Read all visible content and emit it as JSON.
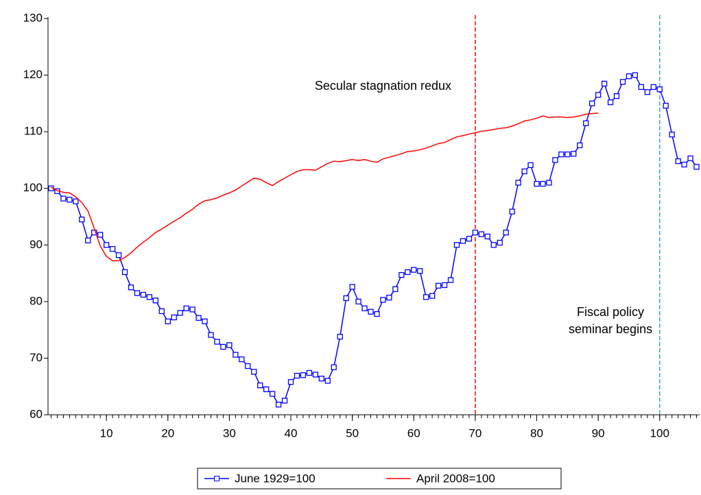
{
  "chart_data": {
    "type": "line",
    "x": [
      1,
      2,
      3,
      4,
      5,
      6,
      7,
      8,
      9,
      10,
      11,
      12,
      13,
      14,
      15,
      16,
      17,
      18,
      19,
      20,
      21,
      22,
      23,
      24,
      25,
      26,
      27,
      28,
      29,
      30,
      31,
      32,
      33,
      34,
      35,
      36,
      37,
      38,
      39,
      40,
      41,
      42,
      43,
      44,
      45,
      46,
      47,
      48,
      49,
      50,
      51,
      52,
      53,
      54,
      55,
      56,
      57,
      58,
      59,
      60,
      61,
      62,
      63,
      64,
      65,
      66,
      67,
      68,
      69,
      70,
      71,
      72,
      73,
      74,
      75,
      76,
      77,
      78,
      79,
      80,
      81,
      82,
      83,
      84,
      85,
      86,
      87,
      88,
      89,
      90,
      91,
      92,
      93,
      94,
      95,
      96,
      97,
      98,
      99,
      100,
      101,
      102,
      103,
      104,
      105,
      106
    ],
    "series": [
      {
        "name": "June 1929=100",
        "color": "#0000ff",
        "marker": "square",
        "values": [
          100,
          99.5,
          98.2,
          98,
          97.7,
          94.5,
          90.8,
          92.2,
          91.8,
          90,
          89.3,
          88.2,
          85.2,
          82.5,
          81.5,
          81.2,
          80.8,
          80.2,
          78.3,
          76.5,
          77.2,
          78,
          78.8,
          78.6,
          77.1,
          76.5,
          74.1,
          72.9,
          72,
          72.3,
          70.6,
          69.8,
          68.6,
          67.6,
          65.2,
          64.5,
          63.7,
          61.8,
          62.5,
          65.8,
          66.9,
          67,
          67.4,
          67.1,
          66.4,
          66,
          68.4,
          73.8,
          80.6,
          82.6,
          80,
          78.8,
          78.2,
          77.8,
          80.3,
          80.7,
          82.2,
          84.7,
          85.2,
          85.6,
          85.4,
          80.8,
          81,
          82.8,
          82.9,
          83.8,
          90,
          90.7,
          91.1,
          92.2,
          91.9,
          91.5,
          90,
          90.4,
          92.2,
          95.9,
          101,
          103,
          104.1,
          100.8,
          100.8,
          101,
          105,
          106,
          106,
          106.1,
          107.6,
          111.5,
          115,
          116.5,
          118.5,
          115.2,
          116.3,
          118.8,
          119.8,
          120,
          117.9,
          117,
          117.9,
          117.5,
          114.6,
          109.5,
          104.8,
          104.2,
          105.3,
          103.8
        ]
      },
      {
        "name": "April 2008=100",
        "color": "#ff0000",
        "marker": null,
        "values": [
          100.2,
          99.6,
          99.3,
          99.2,
          98.5,
          97.5,
          96,
          93,
          89.8,
          88,
          87.2,
          87.2,
          87.8,
          88.6,
          89.6,
          90.5,
          91.3,
          92.2,
          92.8,
          93.5,
          94.2,
          94.8,
          95.6,
          96.3,
          97.2,
          97.8,
          98,
          98.3,
          98.8,
          99.2,
          99.7,
          100.4,
          101.1,
          101.8,
          101.6,
          101,
          100.5,
          101.2,
          101.8,
          102.4,
          103,
          103.3,
          103.3,
          103.2,
          103.8,
          104.4,
          104.8,
          104.7,
          104.9,
          105.1,
          104.9,
          105.1,
          104.8,
          104.6,
          105.2,
          105.5,
          105.8,
          106.1,
          106.5,
          106.6,
          106.8,
          107.1,
          107.5,
          107.9,
          108.1,
          108.6,
          109.1,
          109.3,
          109.6,
          109.8,
          110.1,
          110.2,
          110.4,
          110.6,
          110.7,
          111,
          111.4,
          111.9,
          112.1,
          112.4,
          112.8,
          112.5,
          112.6,
          112.6,
          112.5,
          112.6,
          112.8,
          113.1,
          113.2,
          113.3,
          null,
          null,
          null,
          null,
          null,
          null,
          null,
          null,
          null,
          null,
          null,
          null,
          null,
          null,
          null,
          null
        ]
      }
    ],
    "xlim": [
      0.5,
      106.5
    ],
    "xticks": [
      10,
      20,
      30,
      40,
      50,
      60,
      70,
      80,
      90,
      100
    ],
    "ylim": [
      60,
      130
    ],
    "yticks": [
      60,
      70,
      80,
      90,
      100,
      110,
      120,
      130
    ],
    "vlines": [
      {
        "x": 70,
        "color": "#ff0000"
      },
      {
        "x": 100,
        "color": "#3399ff"
      }
    ],
    "annotations": [
      {
        "lines": [
          "Secular stagnation redux"
        ],
        "x": 55,
        "y": 118,
        "color": "#ff0000"
      },
      {
        "lines": [
          "Fiscal policy",
          "seminar begins"
        ],
        "x": 92,
        "y": 78,
        "color": "#0000ff"
      }
    ],
    "legend": "bottom"
  }
}
